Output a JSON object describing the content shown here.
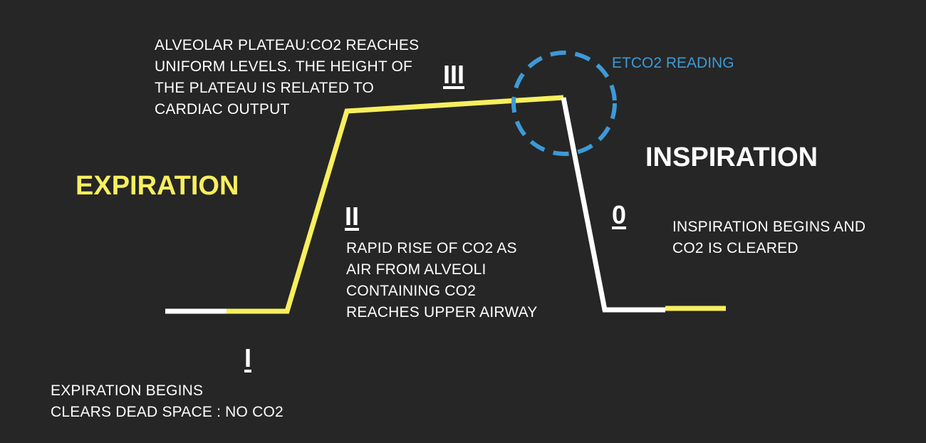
{
  "colors": {
    "background": "#262626",
    "expiration": "#f7ef5e",
    "inspiration": "#ffffff",
    "etco2": "#3d9ad6"
  },
  "labels": {
    "expiration": "EXPIRATION",
    "inspiration": "INSPIRATION",
    "etco2_reading": "ETCO2 READING"
  },
  "phases": {
    "phase_i": {
      "numeral": "I",
      "lines": [
        "EXPIRATION BEGINS",
        "CLEARS DEAD SPACE : NO CO2"
      ]
    },
    "phase_ii": {
      "numeral": "II",
      "lines": [
        "RAPID RISE OF CO2 AS",
        "AIR FROM ALVEOLI",
        "CONTAINING CO2",
        "REACHES UPPER AIRWAY"
      ]
    },
    "phase_iii": {
      "numeral": "III",
      "lines": [
        "ALVEOLAR PLATEAU:CO2 REACHES",
        "UNIFORM LEVELS. THE HEIGHT OF",
        "THE PLATEAU IS RELATED TO",
        "CARDIAC OUTPUT"
      ]
    },
    "phase_0": {
      "numeral": "0",
      "lines": [
        "INSPIRATION BEGINS AND",
        "CO2 IS CLEARED"
      ]
    }
  }
}
